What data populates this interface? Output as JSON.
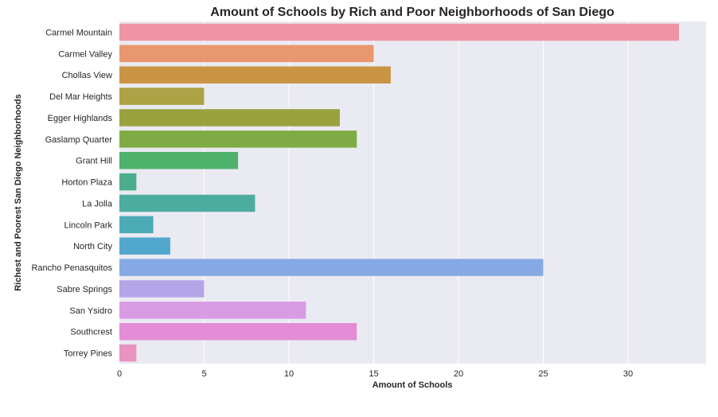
{
  "chart_data": {
    "type": "bar",
    "orientation": "horizontal",
    "title": "Amount of Schools by Rich and Poor Neighborhoods of San Diego",
    "xlabel": "Amount of Schools",
    "ylabel": "Richest and Poorest San Diego Neighborhoods",
    "xlim": [
      0,
      34.6
    ],
    "xticks": [
      0,
      5,
      10,
      15,
      20,
      25,
      30
    ],
    "grid": true,
    "background": "#eaeaf2",
    "categories": [
      "Carmel Mountain",
      "Carmel Valley",
      "Chollas View",
      "Del Mar Heights",
      "Egger Highlands",
      "Gaslamp Quarter",
      "Grant Hill",
      "Horton Plaza",
      "La Jolla",
      "Lincoln Park",
      "North City",
      "Rancho Penasquitos",
      "Sabre Springs",
      "San Ysidro",
      "Southcrest",
      "Torrey Pines"
    ],
    "values": [
      33,
      15,
      16,
      5,
      13,
      14,
      7,
      1,
      8,
      2,
      3,
      25,
      5,
      11,
      14,
      1
    ],
    "colors": [
      "#ef94a2",
      "#e8976f",
      "#c99443",
      "#ada245",
      "#9aa240",
      "#7fab44",
      "#4eb26c",
      "#4cad8c",
      "#4bac9f",
      "#4dabb5",
      "#52a8cc",
      "#86a9e3",
      "#b4a5e9",
      "#d89be4",
      "#e48cd6",
      "#e893c0"
    ]
  }
}
